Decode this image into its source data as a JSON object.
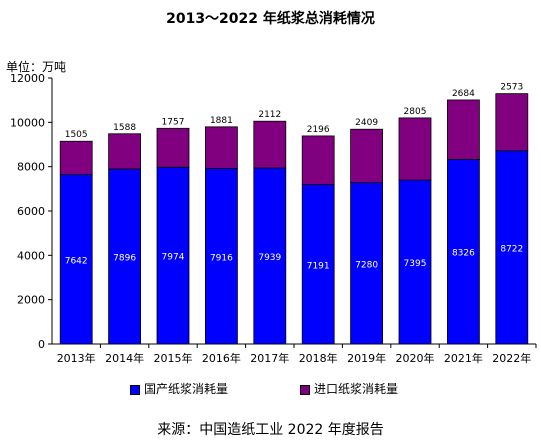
{
  "title": "2013～2022 年纸浆总消耗情况",
  "unit_label": "单位：万吨",
  "source": "来源：中国造纸工业 2022 年度报告",
  "colors": {
    "domestic": "#0000ff",
    "import": "#800080",
    "axis": "#000000",
    "gridline": "#c8c8c8"
  },
  "chart_data": {
    "type": "bar",
    "stacked": true,
    "title": "2013～2022 年纸浆总消耗情况",
    "ylabel": "单位：万吨",
    "ylim": [
      0,
      12000
    ],
    "yticks": [
      0,
      2000,
      4000,
      6000,
      8000,
      10000,
      12000
    ],
    "categories": [
      "2013年",
      "2014年",
      "2015年",
      "2016年",
      "2017年",
      "2018年",
      "2019年",
      "2020年",
      "2021年",
      "2022年"
    ],
    "series": [
      {
        "name": "国产纸浆消耗量",
        "values": [
          7642,
          7896,
          7974,
          7916,
          7939,
          7191,
          7280,
          7395,
          8326,
          8722
        ]
      },
      {
        "name": "进口纸浆消耗量",
        "values": [
          1505,
          1588,
          1757,
          1881,
          2112,
          2196,
          2409,
          2805,
          2684,
          2573
        ]
      }
    ],
    "legend_position": "bottom"
  }
}
